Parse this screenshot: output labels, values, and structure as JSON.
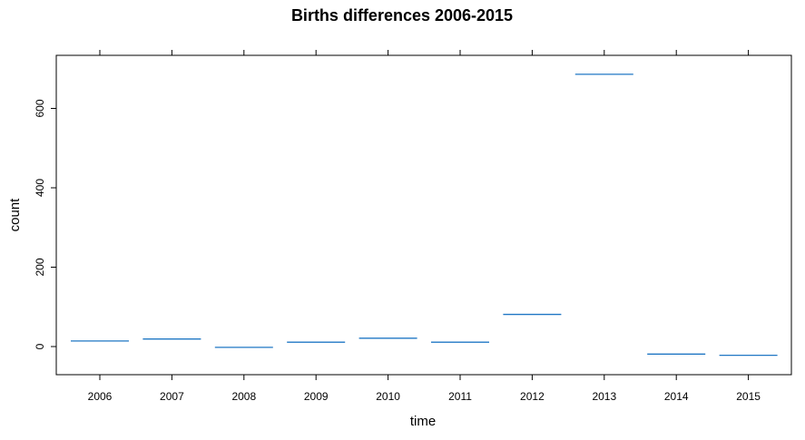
{
  "chart_data": {
    "type": "bar",
    "style": "horizontal segments per category",
    "title": "Births differences 2006-2015",
    "xlabel": "time",
    "ylabel": "count",
    "categories": [
      "2006",
      "2007",
      "2008",
      "2009",
      "2010",
      "2011",
      "2012",
      "2013",
      "2014",
      "2015"
    ],
    "values": [
      14,
      19,
      -2,
      11,
      21,
      11,
      81,
      686,
      -19,
      -22
    ],
    "yticks": [
      0,
      200,
      400,
      600
    ],
    "ylim": [
      -70,
      740
    ],
    "grid": false,
    "legend": "none",
    "series_color": "#1f77c4"
  }
}
